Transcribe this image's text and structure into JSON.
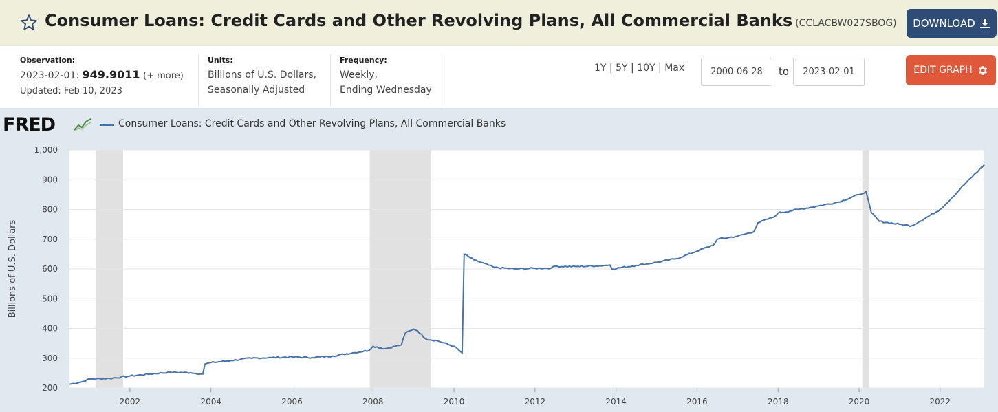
{
  "header": {
    "title": "Consumer Loans: Credit Cards and Other Revolving Plans, All Commercial Banks",
    "series_id": "(CCLACBW027SBOG)",
    "download_label": "DOWNLOAD"
  },
  "observation": {
    "label": "Observation:",
    "date": "2023-02-01:",
    "value": "949.9011",
    "more": "(+ more)",
    "updated": "Updated: Feb 10, 2023"
  },
  "units": {
    "label": "Units:",
    "line1": "Billions of U.S. Dollars,",
    "line2": "Seasonally Adjusted"
  },
  "frequency": {
    "label": "Frequency:",
    "line1": "Weekly,",
    "line2": "Ending Wednesday"
  },
  "controls": {
    "ranges": [
      "1Y",
      "5Y",
      "10Y",
      "Max"
    ],
    "start_date": "2000-06-28",
    "to_label": "to",
    "end_date": "2023-02-01",
    "edit_label": "EDIT GRAPH"
  },
  "brand": {
    "logo": "FRED"
  },
  "colors": {
    "series": "#4572a7",
    "recession": "#e1e1e1",
    "download": "#2f4c76",
    "edit": "#e0583a"
  },
  "chart_data": {
    "type": "line",
    "legend": "Consumer Loans: Credit Cards and Other Revolving Plans, All Commercial Banks",
    "ylabel": "Billions of U.S. Dollars",
    "ylim": [
      200,
      1000
    ],
    "xlim": [
      2000.49,
      2023.09
    ],
    "yticks": [
      "200",
      "300",
      "400",
      "500",
      "600",
      "700",
      "800",
      "900",
      "1,000"
    ],
    "xticks": [
      "2002",
      "2004",
      "2006",
      "2008",
      "2010",
      "2012",
      "2014",
      "2016",
      "2018",
      "2020",
      "2022"
    ],
    "recessions": [
      [
        2001.17,
        2001.83
      ],
      [
        2007.92,
        2009.42
      ],
      [
        2020.08,
        2020.25
      ]
    ],
    "series": [
      {
        "name": "Consumer Loans: Credit Cards and Other Revolving Plans, All Commercial Banks",
        "x": [
          2000.49,
          2000.8,
          2001.0,
          2001.5,
          2002.0,
          2002.5,
          2003.0,
          2003.5,
          2003.8,
          2003.85,
          2004.0,
          2004.5,
          2005.0,
          2005.5,
          2006.0,
          2006.5,
          2007.0,
          2007.5,
          2007.9,
          2008.0,
          2008.3,
          2008.7,
          2008.8,
          2009.0,
          2009.1,
          2009.3,
          2009.6,
          2010.0,
          2010.2,
          2010.25,
          2010.5,
          2011.0,
          2011.5,
          2012.0,
          2012.4,
          2012.5,
          2013.0,
          2013.5,
          2013.85,
          2013.9,
          2014.5,
          2015.0,
          2015.5,
          2016.0,
          2016.4,
          2016.5,
          2017.0,
          2017.4,
          2017.5,
          2017.9,
          2018.0,
          2018.5,
          2019.0,
          2019.5,
          2020.0,
          2020.17,
          2020.3,
          2020.5,
          2021.0,
          2021.3,
          2021.5,
          2022.0,
          2022.3,
          2022.5,
          2023.09
        ],
        "y": [
          212,
          220,
          230,
          232,
          240,
          247,
          253,
          251,
          247,
          280,
          285,
          292,
          300,
          302,
          304,
          302,
          307,
          318,
          326,
          340,
          332,
          345,
          385,
          398,
          392,
          365,
          358,
          340,
          318,
          650,
          630,
          605,
          600,
          602,
          603,
          609,
          608,
          610,
          613,
          600,
          612,
          622,
          635,
          660,
          680,
          700,
          710,
          725,
          755,
          775,
          788,
          800,
          812,
          825,
          850,
          860,
          790,
          760,
          750,
          745,
          760,
          800,
          840,
          870,
          950
        ]
      }
    ]
  }
}
